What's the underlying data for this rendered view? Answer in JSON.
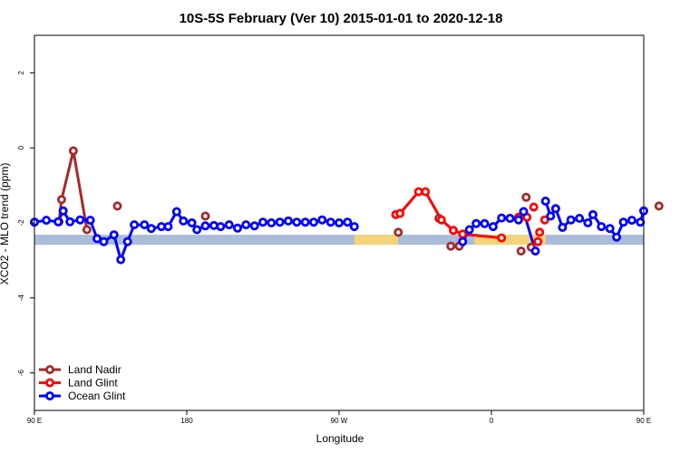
{
  "chart_data": {
    "type": "line",
    "title": "10S-5S February (Ver 10)   2015-01-01 to 2020-12-18",
    "xlabel": "Longitude",
    "ylabel": "XCO2 - MLO trend (ppm)",
    "xlim": [
      90,
      450
    ],
    "ylim": [
      -7,
      3
    ],
    "x_ticks": [
      {
        "value": 90,
        "label": "90 E"
      },
      {
        "value": 180,
        "label": "180"
      },
      {
        "value": 270,
        "label": "90 W"
      },
      {
        "value": 360,
        "label": "0"
      },
      {
        "value": 450,
        "label": "90 E"
      }
    ],
    "y_ticks": [
      {
        "value": 2,
        "label": "2"
      },
      {
        "value": 0,
        "label": "0"
      },
      {
        "value": -2,
        "label": "-2"
      },
      {
        "value": -4,
        "label": "-4"
      },
      {
        "value": -6,
        "label": "-6"
      }
    ],
    "grid": false,
    "legend_position": "bottom-left",
    "band": {
      "y": -2.45,
      "ocean_color": "#a9bcd8",
      "land_color": "#f3d47a",
      "land_ranges": [
        [
          279,
          305
        ],
        [
          350,
          392
        ]
      ]
    },
    "series": [
      {
        "name": "Land Nadir",
        "color": "#a52a2a",
        "linestyle": "solid",
        "points": [
          [
            104.5,
            -1.97
          ],
          [
            106,
            -1.38
          ],
          [
            113,
            -0.08
          ],
          [
            121,
            -2.18
          ]
        ],
        "isolated": [
          [
            139,
            -1.55
          ],
          [
            191,
            -1.82
          ],
          [
            305,
            -2.25
          ],
          [
            329,
            -1.88
          ],
          [
            336,
            -2.62
          ],
          [
            341,
            -2.62
          ],
          [
            377.5,
            -2.75
          ],
          [
            380.5,
            -1.32
          ],
          [
            383.5,
            -2.65
          ],
          [
            459,
            -1.55
          ]
        ]
      },
      {
        "name": "Land Glint",
        "color": "#ff0000",
        "linestyle": "solid",
        "points": [
          [
            303.5,
            -1.78
          ],
          [
            306,
            -1.75
          ],
          [
            317,
            -1.17
          ],
          [
            321,
            -1.17
          ],
          [
            330.5,
            -1.92
          ],
          [
            337.5,
            -2.2
          ],
          [
            343,
            -2.3
          ],
          [
            366,
            -2.4
          ]
        ],
        "isolated": [
          [
            376,
            -1.85
          ],
          [
            381,
            -1.85
          ],
          [
            385,
            -1.58
          ],
          [
            387.5,
            -2.5
          ],
          [
            388.5,
            -2.25
          ],
          [
            391.5,
            -1.92
          ]
        ]
      },
      {
        "name": "Ocean Glint",
        "color": "#0000ff",
        "linestyle": "solid",
        "points": [
          [
            90,
            -1.98
          ],
          [
            97,
            -1.93
          ],
          [
            104,
            -1.97
          ],
          [
            107,
            -1.68
          ],
          [
            111,
            -1.97
          ],
          [
            117,
            -1.92
          ],
          [
            123,
            -1.93
          ],
          [
            127,
            -2.42
          ],
          [
            131,
            -2.5
          ],
          [
            137,
            -2.32
          ],
          [
            141,
            -2.98
          ],
          [
            145,
            -2.5
          ],
          [
            149,
            -2.05
          ],
          [
            155,
            -2.05
          ],
          [
            159,
            -2.15
          ],
          [
            165,
            -2.1
          ],
          [
            169,
            -2.1
          ],
          [
            174,
            -1.7
          ],
          [
            178,
            -1.95
          ],
          [
            183,
            -2.0
          ],
          [
            186,
            -2.18
          ],
          [
            191,
            -2.08
          ],
          [
            196,
            -2.07
          ],
          [
            200,
            -2.1
          ],
          [
            205,
            -2.05
          ],
          [
            210,
            -2.14
          ],
          [
            215,
            -2.05
          ],
          [
            220,
            -2.08
          ],
          [
            225,
            -1.98
          ],
          [
            230,
            -2.0
          ],
          [
            235,
            -1.98
          ],
          [
            240,
            -1.95
          ],
          [
            245,
            -1.98
          ],
          [
            250,
            -1.98
          ],
          [
            255,
            -1.98
          ],
          [
            260,
            -1.92
          ],
          [
            265,
            -1.98
          ],
          [
            270,
            -2.0
          ],
          [
            275,
            -1.98
          ],
          [
            279,
            -2.1
          ]
        ],
        "segments": [
          [
            [
              343,
              -2.5
            ],
            [
              347,
              -2.18
            ],
            [
              351,
              -2.02
            ],
            [
              356,
              -2.02
            ],
            [
              361,
              -2.1
            ],
            [
              366,
              -1.87
            ],
            [
              371,
              -1.88
            ],
            [
              376,
              -1.92
            ],
            [
              379,
              -1.7
            ]
          ],
          [
            [
              379,
              -1.7
            ],
            [
              386,
              -2.75
            ]
          ],
          [
            [
              392,
              -1.42
            ],
            [
              395,
              -1.82
            ],
            [
              398,
              -1.62
            ],
            [
              402,
              -2.12
            ],
            [
              407,
              -1.92
            ],
            [
              412,
              -1.88
            ],
            [
              417,
              -2.0
            ],
            [
              420,
              -1.78
            ],
            [
              425,
              -2.1
            ],
            [
              430,
              -2.15
            ],
            [
              434,
              -2.38
            ],
            [
              438,
              -1.98
            ],
            [
              443,
              -1.93
            ],
            [
              448,
              -1.98
            ],
            [
              450,
              -1.68
            ]
          ]
        ]
      }
    ]
  }
}
